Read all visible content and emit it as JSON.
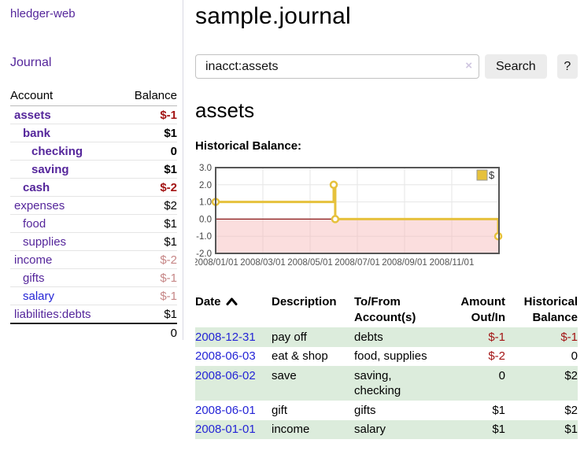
{
  "colors": {
    "purple": "#55269b",
    "blue": "#2525d6",
    "neg": "#a31414",
    "negMuted": "#c68686",
    "rowGreen": "#dcecdc",
    "gold": "#e6c13c",
    "pinkFill": "#f7b6b6",
    "zeroLine": "#8b1a1a",
    "gridline": "#e6e6e6",
    "chartBorder": "#565656"
  },
  "app": {
    "brand": "hledger-web"
  },
  "sidebar": {
    "journal_link": "Journal",
    "accounts": {
      "headers": {
        "account": "Account",
        "balance": "Balance"
      },
      "rows": [
        {
          "name": "assets",
          "indent": 0,
          "bold": true,
          "link": "purple",
          "balance": "$-1",
          "balance_class": "neg"
        },
        {
          "name": "bank",
          "indent": 1,
          "bold": true,
          "link": "purple",
          "balance": "$1",
          "balance_class": ""
        },
        {
          "name": "checking",
          "indent": 2,
          "bold": true,
          "link": "purple",
          "balance": "0",
          "balance_class": ""
        },
        {
          "name": "saving",
          "indent": 2,
          "bold": true,
          "link": "purple",
          "balance": "$1",
          "balance_class": ""
        },
        {
          "name": "cash",
          "indent": 1,
          "bold": true,
          "link": "purple",
          "balance": "$-2",
          "balance_class": "neg"
        },
        {
          "name": "expenses",
          "indent": 0,
          "bold": false,
          "link": "purple",
          "balance": "$2",
          "balance_class": ""
        },
        {
          "name": "food",
          "indent": 1,
          "bold": false,
          "link": "purple",
          "balance": "$1",
          "balance_class": ""
        },
        {
          "name": "supplies",
          "indent": 1,
          "bold": false,
          "link": "purple",
          "balance": "$1",
          "balance_class": ""
        },
        {
          "name": "income",
          "indent": 0,
          "bold": false,
          "link": "purple",
          "balance": "$-2",
          "balance_class": "negm"
        },
        {
          "name": "gifts",
          "indent": 1,
          "bold": false,
          "link": "purple",
          "balance": "$-1",
          "balance_class": "negm"
        },
        {
          "name": "salary",
          "indent": 1,
          "bold": false,
          "link": "blue",
          "balance": "$-1",
          "balance_class": "negm"
        },
        {
          "name": "liabilities:debts",
          "indent": 0,
          "bold": false,
          "link": "purple",
          "balance": "$1",
          "balance_class": ""
        }
      ],
      "total": "0"
    }
  },
  "main": {
    "title": "sample.journal",
    "search": {
      "value": "inacct:assets",
      "clear_icon": "×",
      "button_label": "Search",
      "help_label": "?"
    },
    "account_heading": "assets",
    "chart_heading": "Historical Balance:"
  },
  "chart_data": {
    "type": "line",
    "step": true,
    "title": "Historical Balance:",
    "series": [
      {
        "name": "$",
        "points": [
          {
            "date": "2008-01-01",
            "value": 1
          },
          {
            "date": "2008-06-01",
            "value": 2
          },
          {
            "date": "2008-06-03",
            "value": 0
          },
          {
            "date": "2008-12-31",
            "value": -1
          }
        ]
      }
    ],
    "xlim": [
      "2008-01-01",
      "2009-01-01"
    ],
    "ylim": [
      -2,
      3
    ],
    "yticks": [
      3,
      2,
      1,
      0,
      -1,
      -2
    ],
    "ytick_labels": [
      "3.0",
      "2.0",
      "1.0",
      "0.0",
      "-1.0",
      "-2.0"
    ],
    "xtick_months": [
      0,
      2,
      4,
      6,
      8,
      10
    ],
    "xticklabels": [
      "2008/01/01",
      "2008/03/01",
      "2008/05/01",
      "2008/07/01",
      "2008/09/01",
      "2008/11/01"
    ],
    "grid": true,
    "negative_region_shaded": true,
    "legend_position": "top-right",
    "legend_label": "$"
  },
  "register": {
    "headers": [
      {
        "lines": [
          "Date"
        ],
        "align": "l",
        "sorted_asc": true
      },
      {
        "lines": [
          "Description"
        ],
        "align": "l"
      },
      {
        "lines": [
          "To/From",
          "Account(s)"
        ],
        "align": "l"
      },
      {
        "lines": [
          "Amount",
          "Out/In"
        ],
        "align": "r"
      },
      {
        "lines": [
          "Historical",
          "Balance"
        ],
        "align": "r"
      }
    ],
    "rows": [
      {
        "date": "2008-12-31",
        "description": "pay off",
        "accounts": [
          "debts"
        ],
        "amount": "$-1",
        "amount_neg": true,
        "balance": "$-1",
        "balance_neg": true
      },
      {
        "date": "2008-06-03",
        "description": "eat & shop",
        "accounts": [
          "food, supplies"
        ],
        "amount": "$-2",
        "amount_neg": true,
        "balance": "0",
        "balance_neg": false
      },
      {
        "date": "2008-06-02",
        "description": "save",
        "accounts": [
          "saving,",
          "checking"
        ],
        "amount": "0",
        "amount_neg": false,
        "balance": "$2",
        "balance_neg": false
      },
      {
        "date": "2008-06-01",
        "description": "gift",
        "accounts": [
          "gifts"
        ],
        "amount": "$1",
        "amount_neg": false,
        "balance": "$2",
        "balance_neg": false
      },
      {
        "date": "2008-01-01",
        "description": "income",
        "accounts": [
          "salary"
        ],
        "amount": "$1",
        "amount_neg": false,
        "balance": "$1",
        "balance_neg": false
      }
    ]
  }
}
